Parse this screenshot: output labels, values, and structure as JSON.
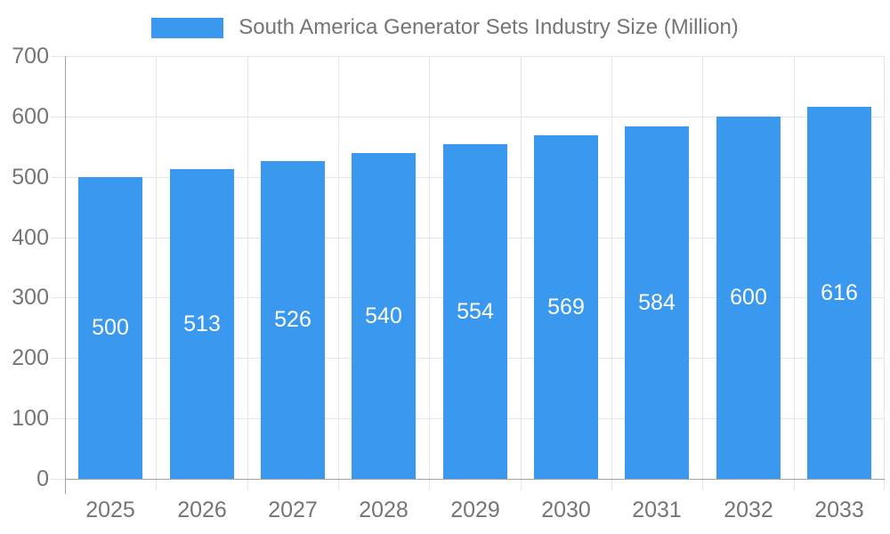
{
  "legend": {
    "label": "South America Generator Sets Industry Size (Million)"
  },
  "chart_data": {
    "type": "bar",
    "title": "South America Generator Sets Industry Size (Million)",
    "categories": [
      "2025",
      "2026",
      "2027",
      "2028",
      "2029",
      "2030",
      "2031",
      "2032",
      "2033"
    ],
    "values": [
      500,
      513,
      526,
      540,
      554,
      569,
      584,
      600,
      616
    ],
    "xlabel": "",
    "ylabel": "",
    "ylim": [
      0,
      700
    ],
    "ytick_step": 100,
    "grid": true,
    "legend_position": "top",
    "data_labels": "inside-center",
    "colors": {
      "bar": "#3a99ee",
      "bar_label_text": "#ffffff",
      "axis_text": "#757575",
      "gridline": "#e6e6e6",
      "axis_line": "#a3a3a3",
      "background": "#ffffff"
    }
  }
}
